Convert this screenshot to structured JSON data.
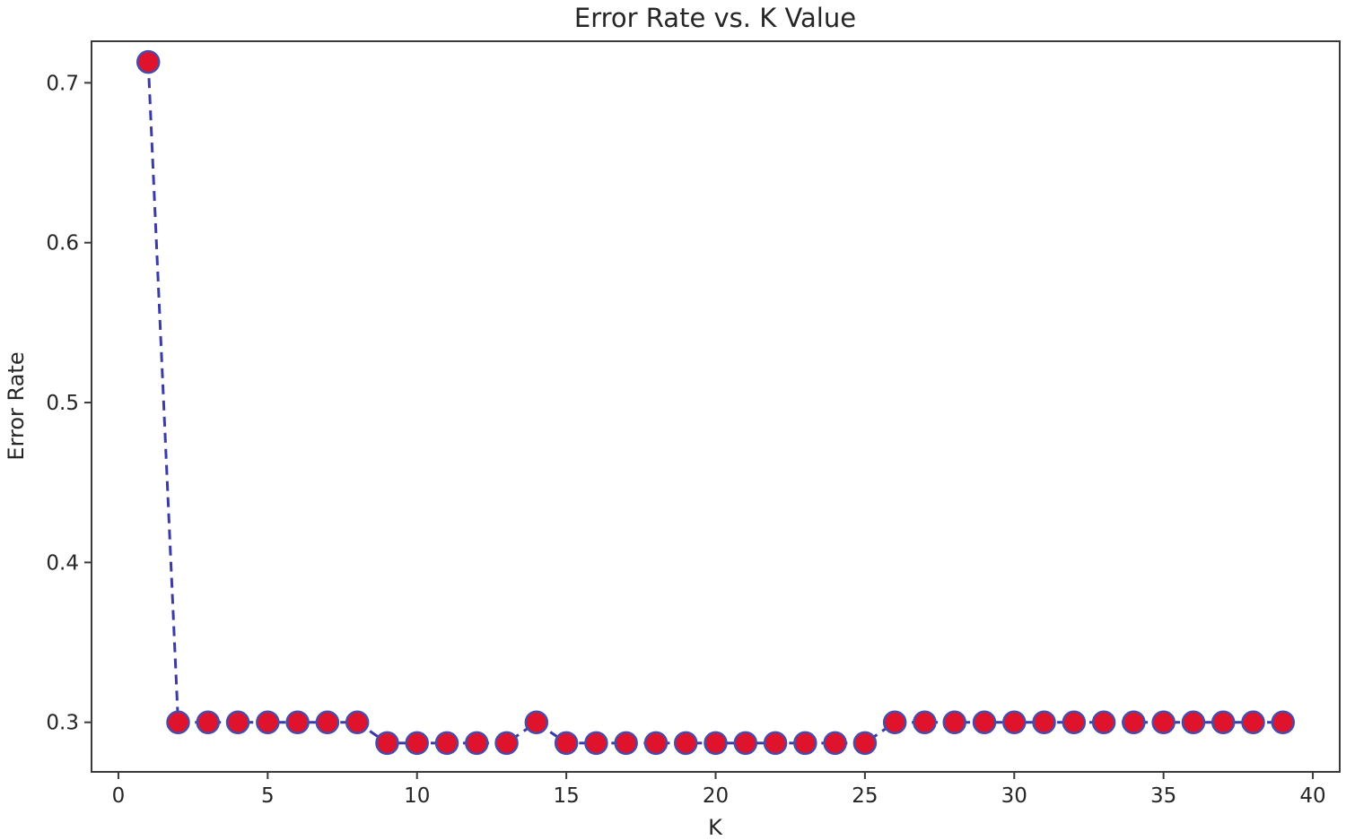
{
  "chart_data": {
    "type": "line",
    "title": "Error Rate vs. K Value",
    "xlabel": "K",
    "ylabel": "Error Rate",
    "xlim": [
      -0.9,
      40.9
    ],
    "ylim": [
      0.269,
      0.726
    ],
    "xticks": [
      0,
      5,
      10,
      15,
      20,
      25,
      30,
      35,
      40
    ],
    "yticks": [
      0.3,
      0.4,
      0.5,
      0.6,
      0.7
    ],
    "xtick_labels": [
      "0",
      "5",
      "10",
      "15",
      "20",
      "25",
      "30",
      "35",
      "40"
    ],
    "ytick_labels": [
      "0.3",
      "0.4",
      "0.5",
      "0.6",
      "0.7"
    ],
    "grid": false,
    "series": [
      {
        "line_color": "#3b3ba8",
        "line_style": "dashed",
        "marker": "circle",
        "marker_face_color": "#e0132c",
        "marker_edge_color": "#4a4aa8",
        "x": [
          1,
          2,
          3,
          4,
          5,
          6,
          7,
          8,
          9,
          10,
          11,
          12,
          13,
          14,
          15,
          16,
          17,
          18,
          19,
          20,
          21,
          22,
          23,
          24,
          25,
          26,
          27,
          28,
          29,
          30,
          31,
          32,
          33,
          34,
          35,
          36,
          37,
          38,
          39
        ],
        "y": [
          0.713,
          0.3,
          0.3,
          0.3,
          0.3,
          0.3,
          0.3,
          0.3,
          0.287,
          0.287,
          0.287,
          0.287,
          0.287,
          0.3,
          0.287,
          0.287,
          0.287,
          0.287,
          0.287,
          0.287,
          0.287,
          0.287,
          0.287,
          0.287,
          0.287,
          0.3,
          0.3,
          0.3,
          0.3,
          0.3,
          0.3,
          0.3,
          0.3,
          0.3,
          0.3,
          0.3,
          0.3,
          0.3,
          0.3
        ]
      }
    ]
  }
}
